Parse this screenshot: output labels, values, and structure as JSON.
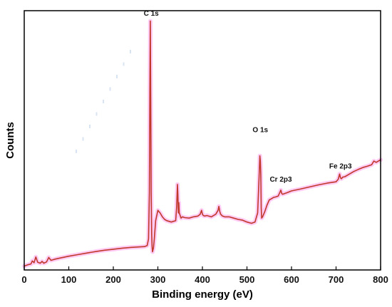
{
  "chart_data": {
    "type": "line",
    "title": "",
    "xlabel": "Binding energy (eV)",
    "ylabel": "Counts",
    "xlim": [
      0,
      800
    ],
    "ylim": [
      0,
      100
    ],
    "x_ticks": [
      0,
      100,
      200,
      300,
      400,
      500,
      600,
      700,
      800
    ],
    "grid": false,
    "legend": "none",
    "colors": {
      "line": "#c0392b",
      "halo": "#ffb3ef",
      "axis": "#000000"
    },
    "series": [
      {
        "x": [
          0,
          8,
          15,
          18,
          22,
          26,
          30,
          36,
          40,
          44,
          50,
          55,
          60,
          70,
          80,
          100,
          120,
          140,
          160,
          180,
          200,
          220,
          240,
          260,
          270,
          276,
          279,
          281,
          282,
          283,
          284,
          285,
          286,
          287,
          288,
          290,
          292,
          295,
          300,
          305,
          310,
          315,
          320,
          330,
          340,
          342,
          344,
          345,
          346,
          347,
          348,
          350,
          352,
          355,
          360,
          370,
          380,
          390,
          395,
          398,
          400,
          402,
          405,
          410,
          420,
          430,
          435,
          437,
          439,
          441,
          445,
          450,
          460,
          470,
          480,
          490,
          500,
          510,
          518,
          524,
          527,
          529,
          530,
          531,
          532,
          533,
          535,
          540,
          545,
          550,
          555,
          560,
          565,
          570,
          574,
          576,
          578,
          580,
          585,
          590,
          600,
          620,
          640,
          660,
          680,
          700,
          705,
          708,
          710,
          712,
          715,
          720,
          730,
          740,
          750,
          760,
          770,
          780,
          785,
          790,
          800
        ],
        "y": [
          1.5,
          2.0,
          2.3,
          3.5,
          2.8,
          5.0,
          3.0,
          2.6,
          3.3,
          2.6,
          3.1,
          4.8,
          3.7,
          4.2,
          4.6,
          5.3,
          5.9,
          6.5,
          7.1,
          7.6,
          8.0,
          8.4,
          8.7,
          8.9,
          9.0,
          9.4,
          12.0,
          30.0,
          70.0,
          96.0,
          65.0,
          30.0,
          14.0,
          9.0,
          7.0,
          8.5,
          12.0,
          19.0,
          23.0,
          22.0,
          20.5,
          19.5,
          19.0,
          18.5,
          19.0,
          24.0,
          33.0,
          29.0,
          22.0,
          26.0,
          22.0,
          21.0,
          20.0,
          20.5,
          20.2,
          20.0,
          20.5,
          20.8,
          21.5,
          23.0,
          21.5,
          21.0,
          20.8,
          21.0,
          20.5,
          21.5,
          23.0,
          24.5,
          22.5,
          21.5,
          20.8,
          20.5,
          20.5,
          20.0,
          19.5,
          19.2,
          18.5,
          18.0,
          18.5,
          22.0,
          35.0,
          44.0,
          42.0,
          37.0,
          24.0,
          20.0,
          20.5,
          22.5,
          25.0,
          27.0,
          27.5,
          28.0,
          28.2,
          28.5,
          30.0,
          30.8,
          29.5,
          29.2,
          29.5,
          29.8,
          30.5,
          31.2,
          32.0,
          32.8,
          33.5,
          34.0,
          35.0,
          37.0,
          35.5,
          35.2,
          35.8,
          36.0,
          37.0,
          38.0,
          38.8,
          39.5,
          40.0,
          40.6,
          42.0,
          41.5,
          42.5
        ]
      }
    ],
    "annotations": [
      {
        "text": "C 1s",
        "x": 285,
        "y": 97
      },
      {
        "text": "O 1s",
        "x": 530,
        "y": 52
      },
      {
        "text": "Cr 2p3",
        "x": 576,
        "y": 33
      },
      {
        "text": "Fe 2p3",
        "x": 710,
        "y": 38
      }
    ]
  }
}
